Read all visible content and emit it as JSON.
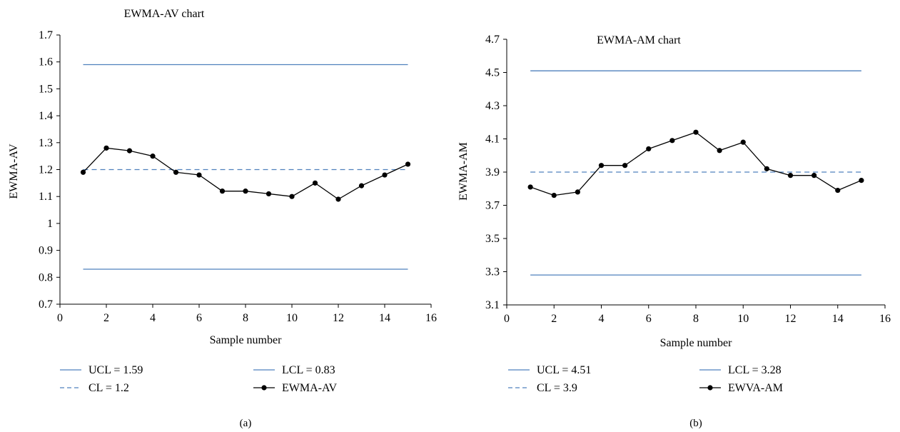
{
  "chart_data": [
    {
      "type": "line",
      "panel_label": "(a)",
      "title": "EWMA-AV chart",
      "xlabel": "Sample number",
      "ylabel": "EWMA-AV",
      "xlim": [
        0,
        16
      ],
      "ylim": [
        0.7,
        1.7
      ],
      "x_ticks": [
        0,
        2,
        4,
        6,
        8,
        10,
        12,
        14,
        16
      ],
      "y_ticks": [
        0.7,
        0.8,
        0.9,
        1,
        1.1,
        1.2,
        1.3,
        1.4,
        1.5,
        1.6,
        1.7
      ],
      "y_tick_labels": [
        "0.7",
        "0.8",
        "0.9",
        "1",
        "1.1",
        "1.2",
        "1.3",
        "1.4",
        "1.5",
        "1.6",
        "1.7"
      ],
      "grid": false,
      "legend_position": "bottom",
      "limit_lines": [
        {
          "name": "UCL = 1.59",
          "value": 1.59,
          "x_range": [
            1,
            15
          ],
          "style": "solid",
          "color": "#4f81bd"
        },
        {
          "name": "LCL = 0.83",
          "value": 0.83,
          "x_range": [
            1,
            15
          ],
          "style": "solid",
          "color": "#4f81bd"
        },
        {
          "name": "CL = 1.2",
          "value": 1.2,
          "x_range": [
            1,
            15
          ],
          "style": "dashed",
          "color": "#4f81bd"
        }
      ],
      "series": [
        {
          "name": "EWMA-AV",
          "color": "#000000",
          "x": [
            1,
            2,
            3,
            4,
            5,
            6,
            7,
            8,
            9,
            10,
            11,
            12,
            13,
            14,
            15
          ],
          "values": [
            1.19,
            1.28,
            1.27,
            1.25,
            1.19,
            1.18,
            1.12,
            1.12,
            1.11,
            1.1,
            1.15,
            1.09,
            1.14,
            1.18,
            1.22
          ]
        }
      ],
      "legend_entries": [
        "UCL = 1.59",
        "LCL = 0.83",
        "CL = 1.2",
        "EWMA-AV"
      ]
    },
    {
      "type": "line",
      "panel_label": "(b)",
      "title": "EWMA-AM chart",
      "xlabel": "Sample number",
      "ylabel": "EWMA-AM",
      "xlim": [
        0,
        16
      ],
      "ylim": [
        3.1,
        4.7
      ],
      "x_ticks": [
        0,
        2,
        4,
        6,
        8,
        10,
        12,
        14,
        16
      ],
      "y_ticks": [
        3.1,
        3.3,
        3.5,
        3.7,
        3.9,
        4.1,
        4.3,
        4.5,
        4.7
      ],
      "y_tick_labels": [
        "3.1",
        "3.3",
        "3.5",
        "3.7",
        "3.9",
        "4.1",
        "4.3",
        "4.5",
        "4.7"
      ],
      "grid": false,
      "legend_position": "bottom",
      "limit_lines": [
        {
          "name": "UCL = 4.51",
          "value": 4.51,
          "x_range": [
            1,
            15
          ],
          "style": "solid",
          "color": "#4f81bd"
        },
        {
          "name": "LCL = 3.28",
          "value": 3.28,
          "x_range": [
            1,
            15
          ],
          "style": "solid",
          "color": "#4f81bd"
        },
        {
          "name": "CL = 3.9",
          "value": 3.9,
          "x_range": [
            1,
            15
          ],
          "style": "dashed",
          "color": "#4f81bd"
        }
      ],
      "series": [
        {
          "name": "EWVA-AM",
          "color": "#000000",
          "x": [
            1,
            2,
            3,
            4,
            5,
            6,
            7,
            8,
            9,
            10,
            11,
            12,
            13,
            14,
            15
          ],
          "values": [
            3.81,
            3.76,
            3.78,
            3.94,
            3.94,
            4.04,
            4.09,
            4.14,
            4.03,
            4.08,
            3.92,
            3.88,
            3.88,
            3.79,
            3.85
          ]
        }
      ],
      "legend_entries": [
        "UCL = 4.51",
        "LCL = 3.28",
        "CL = 3.9",
        "EWVA-AM"
      ]
    }
  ]
}
